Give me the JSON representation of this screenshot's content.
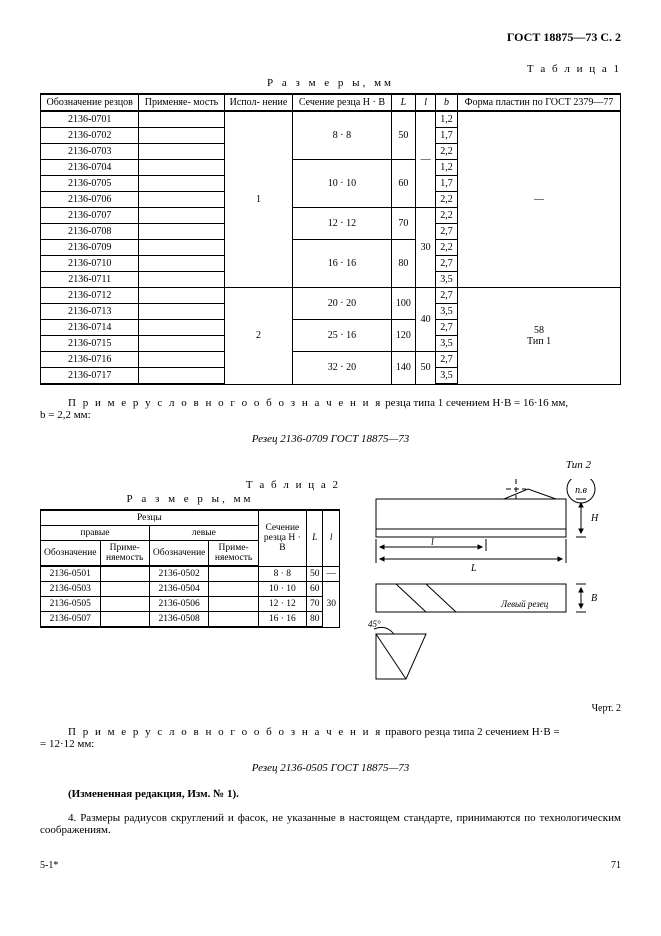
{
  "header": {
    "gost": "ГОСТ 18875—73 С. 2"
  },
  "table1": {
    "label": "Т а б л и ц а  1",
    "caption": "Р а з м е р ы,  мм",
    "columns": [
      "Обозначение резцов",
      "Применяе-\nмость",
      "Испол-\nнение",
      "Сечение резца\nH · B",
      "L",
      "l",
      "b",
      "Форма пластин по\nГОСТ 2379—77"
    ],
    "rows": [
      {
        "oboz": "2136-0701",
        "prim": "",
        "isp": "1",
        "sech": "8 · 8",
        "L": "50",
        "l": "—",
        "b": "1,2",
        "forma": "—",
        "firstIsp": true,
        "firstSech": true,
        "firstL": true,
        "firstl": true,
        "firstForma": true
      },
      {
        "oboz": "2136-0702",
        "prim": "",
        "b": "1,7"
      },
      {
        "oboz": "2136-0703",
        "prim": "",
        "b": "2,2"
      },
      {
        "oboz": "2136-0704",
        "prim": "",
        "sech": "10 · 10",
        "L": "60",
        "b": "1,2",
        "firstSech": true,
        "firstL": true
      },
      {
        "oboz": "2136-0705",
        "prim": "",
        "b": "1,7"
      },
      {
        "oboz": "2136-0706",
        "prim": "",
        "b": "2,2"
      },
      {
        "oboz": "2136-0707",
        "prim": "",
        "sech": "12 · 12",
        "L": "70",
        "l": "30",
        "b": "2,2",
        "firstSech": true,
        "firstL": true,
        "firstl2": true
      },
      {
        "oboz": "2136-0708",
        "prim": "",
        "b": "2,7"
      },
      {
        "oboz": "2136-0709",
        "prim": "",
        "sech": "16 · 16",
        "L": "80",
        "b": "2,2",
        "firstSech": true,
        "firstL": true
      },
      {
        "oboz": "2136-0710",
        "prim": "",
        "b": "2,7"
      },
      {
        "oboz": "2136-0711",
        "prim": "",
        "b": "3,5"
      },
      {
        "oboz": "2136-0712",
        "prim": "",
        "isp": "2",
        "sech": "20 · 20",
        "L": "100",
        "l": "40",
        "b": "2,7",
        "forma": "58\nТип 1",
        "firstIsp2": true,
        "firstSech": true,
        "firstL": true,
        "firstl3": true,
        "firstForma2": true
      },
      {
        "oboz": "2136-0713",
        "prim": "",
        "b": "3,5"
      },
      {
        "oboz": "2136-0714",
        "prim": "",
        "sech": "25 · 16",
        "L": "120",
        "b": "2,7",
        "firstSech": true,
        "firstL": true
      },
      {
        "oboz": "2136-0715",
        "prim": "",
        "b": "3,5"
      },
      {
        "oboz": "2136-0716",
        "prim": "",
        "sech": "32 · 20",
        "L": "140",
        "l": "50",
        "b": "2,7",
        "firstSech": true,
        "firstL": true,
        "firstl4": true
      },
      {
        "oboz": "2136-0717",
        "prim": "",
        "b": "3,5"
      }
    ]
  },
  "example1": {
    "label": "П р и м е р   у с л о в н о г о   о б о з н а ч е н и я",
    "text": "  резца типа 1  сечением H·B = 16·16 мм,",
    "cont": "b = 2,2 мм:",
    "code": "Резец 2136-0709 ГОСТ 18875—73"
  },
  "figure": {
    "tip": "Тип  2",
    "nb": "п.в",
    "left_label": "Левый резец",
    "angle": "45°",
    "H": "H",
    "B": "B",
    "L": "L",
    "l": "l",
    "caption": "Черт. 2"
  },
  "table2": {
    "label": "Т а б л и ц а  2",
    "caption": "Р а з м е р ы,  мм",
    "h_reztsy": "Резцы",
    "h_pravye": "правые",
    "h_levye": "левые",
    "h_oboz": "Обозначение",
    "h_prim": "Приме-\nняемость",
    "h_sech": "Сечение\nрезца\nH · B",
    "h_L": "L",
    "h_l": "l",
    "rows": [
      {
        "op": "2136-0501",
        "pp": "",
        "ol": "2136-0502",
        "pl": "",
        "sech": "8 · 8",
        "L": "50",
        "l": "—"
      },
      {
        "op": "2136-0503",
        "pp": "",
        "ol": "2136-0504",
        "pl": "",
        "sech": "10 · 10",
        "L": "60",
        "l": "30",
        "firstl": true
      },
      {
        "op": "2136-0505",
        "pp": "",
        "ol": "2136-0506",
        "pl": "",
        "sech": "12 · 12",
        "L": "70"
      },
      {
        "op": "2136-0507",
        "pp": "",
        "ol": "2136-0508",
        "pl": "",
        "sech": "16 · 16",
        "L": "80"
      }
    ]
  },
  "example2": {
    "label": "П р и м е р   у с л о в н о г о   о б о з н а ч е н и я",
    "text": "  правого резца  типа 2  сечением  H·B =",
    "cont": "= 12·12  мм:",
    "code": "Резец 2136-0505 ГОСТ 18875—73"
  },
  "amend": "(Измененная редакция, Изм. № 1).",
  "para4": "4. Размеры радиусов скруглений и фасок, не указанные в настоящем стандарте, принимаются по технологическим соображениям.",
  "footer": {
    "left": "5-1*",
    "page": "71"
  }
}
